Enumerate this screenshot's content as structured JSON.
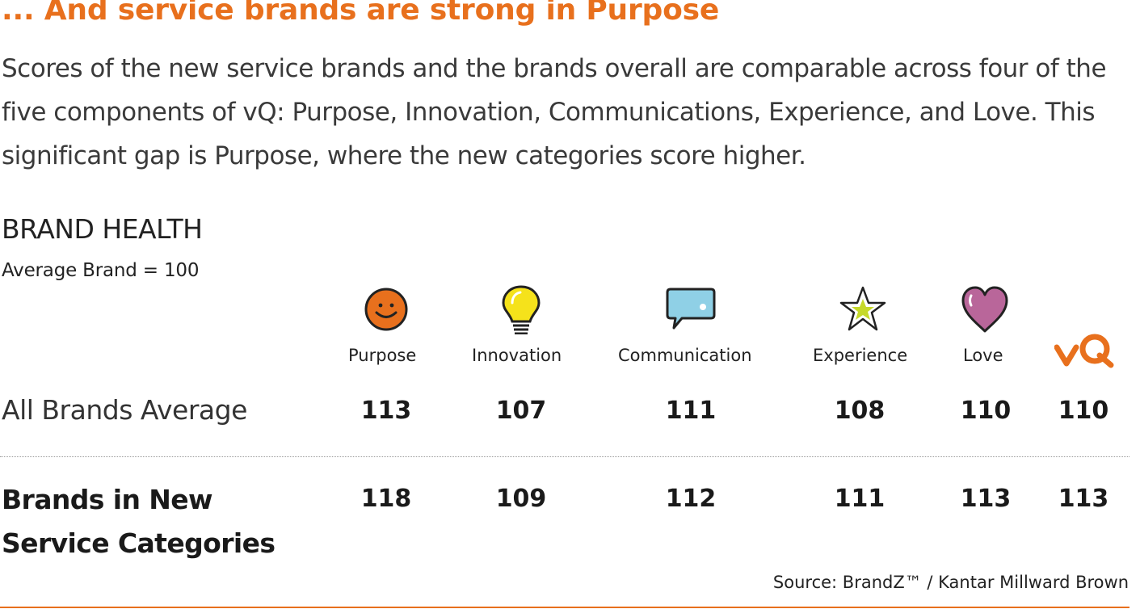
{
  "title": "... And service brands are strong in Purpose",
  "intro": "Scores of the new service brands and the brands overall are comparable across four of the five components of vQ: Purpose, Innovation, Communications, Experience, and Love. This significant gap is Purpose, where the new categories score higher.",
  "brand_health": {
    "title": "BRAND HEALTH",
    "subtitle": "Average Brand = 100"
  },
  "columns": [
    {
      "label": "Purpose",
      "icon": "smiley-face-icon"
    },
    {
      "label": "Innovation",
      "icon": "light-bulb-icon"
    },
    {
      "label": "Communication",
      "icon": "speech-bubble-icon"
    },
    {
      "label": "Experience",
      "icon": "star-icon"
    },
    {
      "label": "Love",
      "icon": "heart-icon"
    },
    {
      "label": "",
      "icon": "vq-logo-icon"
    }
  ],
  "rows": [
    {
      "label": "All Brands Average",
      "values": [
        "113",
        "107",
        "111",
        "108",
        "110",
        "110"
      ]
    },
    {
      "label_line1": "Brands in New",
      "label_line2": "Service Categories",
      "values": [
        "118",
        "109",
        "112",
        "111",
        "113",
        "113"
      ]
    }
  ],
  "source": "Source: BrandZ™ / Kantar Millward Brown",
  "colors": {
    "accent": "#e8701d",
    "purpose": "#e8701d",
    "innovation": "#f5e21b",
    "communication": "#8fd0e6",
    "experience": "#c6d92a",
    "love": "#b9669a"
  }
}
